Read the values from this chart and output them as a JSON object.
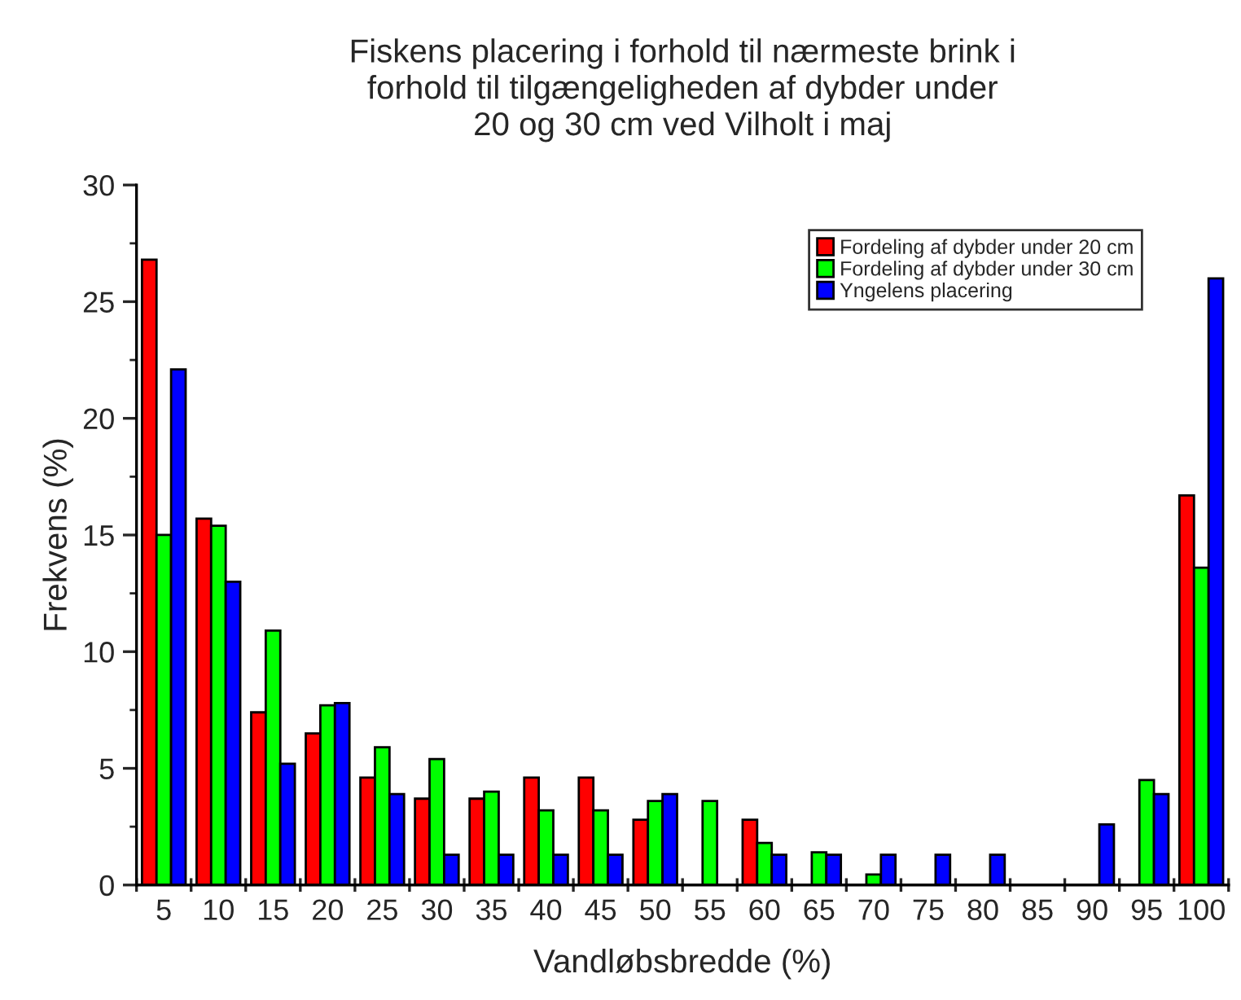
{
  "chart_data": {
    "type": "bar",
    "title": "Fiskens placering i forhold til nærmeste brink i\nforhold til tilgængeligheden af dybder under\n20 og 30 cm ved Vilholt i maj",
    "xlabel": "Vandløbsbredde (%)",
    "ylabel": "Frekvens (%)",
    "categories": [
      "5",
      "10",
      "15",
      "20",
      "25",
      "30",
      "35",
      "40",
      "45",
      "50",
      "55",
      "60",
      "65",
      "70",
      "75",
      "80",
      "85",
      "90",
      "95",
      "100"
    ],
    "series": [
      {
        "name": "Fordeling af dybder under 20 cm",
        "color": "#ff0000",
        "values": [
          26.8,
          15.7,
          7.4,
          6.5,
          4.6,
          3.7,
          3.7,
          4.6,
          4.6,
          2.8,
          0,
          2.8,
          0,
          0,
          0,
          0,
          0,
          0,
          0,
          16.7
        ]
      },
      {
        "name": "Fordeling af dybder under 30 cm",
        "color": "#00ff00",
        "values": [
          15.0,
          15.4,
          10.9,
          7.7,
          5.9,
          5.4,
          4.0,
          3.2,
          3.2,
          3.6,
          3.6,
          1.8,
          1.4,
          0.45,
          0,
          0,
          0,
          0,
          4.5,
          13.6
        ]
      },
      {
        "name": "Yngelens placering",
        "color": "#0000ff",
        "values": [
          22.1,
          13.0,
          5.2,
          7.8,
          3.9,
          1.3,
          1.3,
          1.3,
          1.3,
          3.9,
          0,
          1.3,
          1.3,
          1.3,
          1.3,
          1.3,
          0,
          2.6,
          3.9,
          26.0
        ]
      }
    ],
    "ylim": [
      0,
      30
    ],
    "yticks": [
      0,
      5,
      10,
      15,
      20,
      25,
      30
    ],
    "grid": false,
    "legend": "top right"
  }
}
